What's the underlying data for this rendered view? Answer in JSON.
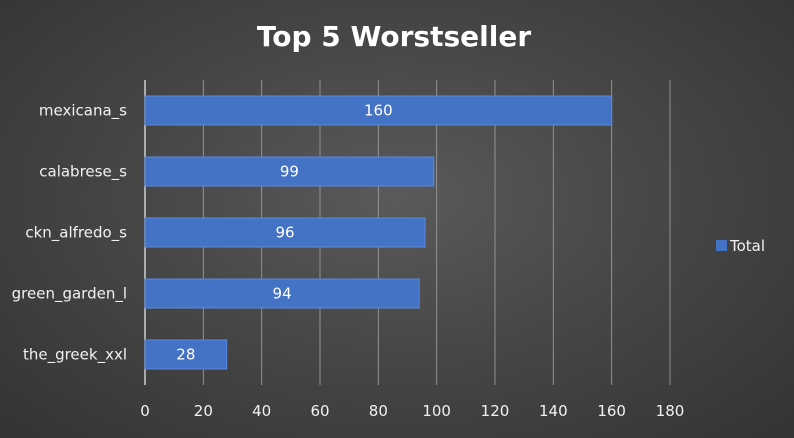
{
  "chart_data": {
    "type": "bar",
    "orientation": "horizontal",
    "title": "Top 5 Worstseller",
    "categories": [
      "mexicana_s",
      "calabrese_s",
      "ckn_alfredo_s",
      "green_garden_l",
      "the_greek_xxl"
    ],
    "series": [
      {
        "name": "Total",
        "values": [
          160,
          99,
          96,
          94,
          28
        ]
      }
    ],
    "xlim": [
      0,
      180
    ],
    "xticks": [
      0,
      20,
      40,
      60,
      80,
      100,
      120,
      140,
      160,
      180
    ],
    "grid": true,
    "data_labels": true,
    "legend": "right",
    "colors": {
      "bar": "#4472c4",
      "bar_edge": "#5b8ae0",
      "grid": "#9a9a9a",
      "text": "#f2f2f2"
    }
  }
}
